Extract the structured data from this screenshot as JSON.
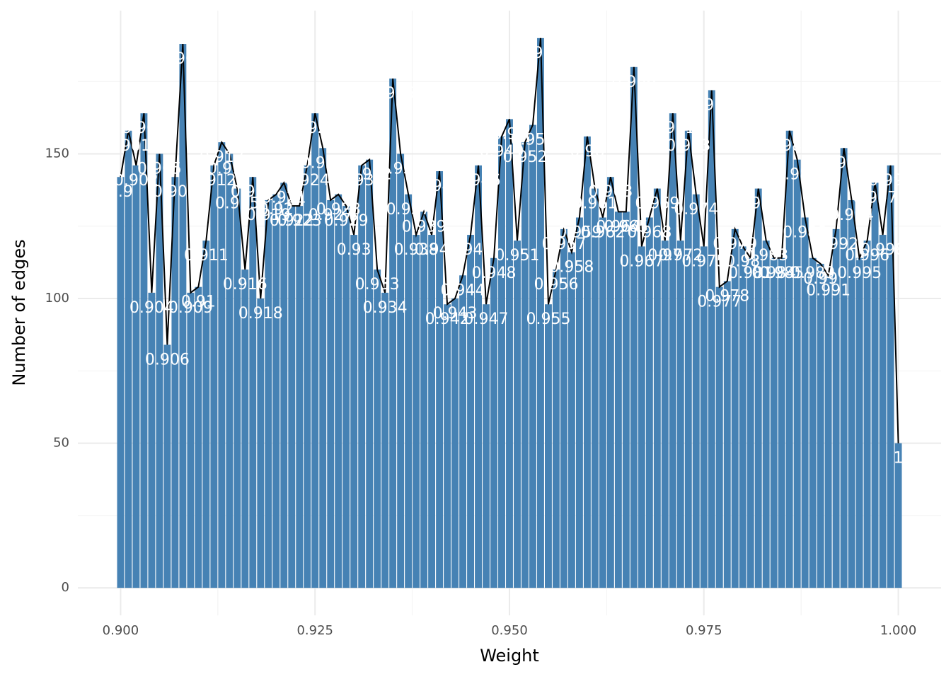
{
  "chart_data": {
    "type": "bar",
    "x_label": "Weight",
    "y_label": "Number of edges",
    "x": [
      0.9,
      0.901,
      0.902,
      0.903,
      0.904,
      0.905,
      0.906,
      0.907,
      0.908,
      0.909,
      0.91,
      0.911,
      0.912,
      0.913,
      0.914,
      0.915,
      0.916,
      0.917,
      0.918,
      0.919,
      0.92,
      0.921,
      0.922,
      0.923,
      0.924,
      0.925,
      0.926,
      0.927,
      0.928,
      0.929,
      0.93,
      0.931,
      0.932,
      0.933,
      0.934,
      0.935,
      0.936,
      0.937,
      0.938,
      0.939,
      0.94,
      0.941,
      0.942,
      0.943,
      0.944,
      0.945,
      0.946,
      0.947,
      0.948,
      0.949,
      0.95,
      0.951,
      0.952,
      0.953,
      0.954,
      0.955,
      0.956,
      0.957,
      0.958,
      0.959,
      0.96,
      0.961,
      0.962,
      0.963,
      0.964,
      0.965,
      0.966,
      0.967,
      0.968,
      0.969,
      0.97,
      0.971,
      0.972,
      0.973,
      0.974,
      0.975,
      0.976,
      0.977,
      0.978,
      0.979,
      0.98,
      0.981,
      0.982,
      0.983,
      0.984,
      0.985,
      0.986,
      0.987,
      0.988,
      0.989,
      0.99,
      0.991,
      0.992,
      0.993,
      0.994,
      0.995,
      0.996,
      0.997,
      0.998,
      0.999,
      1
    ],
    "values": [
      142,
      158,
      146,
      164,
      102,
      150,
      84,
      142,
      188,
      102,
      104,
      120,
      146,
      154,
      150,
      138,
      110,
      142,
      100,
      134,
      136,
      140,
      132,
      132,
      146,
      164,
      152,
      134,
      136,
      132,
      122,
      146,
      148,
      110,
      102,
      176,
      150,
      136,
      122,
      130,
      122,
      144,
      98,
      100,
      108,
      122,
      146,
      98,
      114,
      156,
      162,
      120,
      154,
      160,
      190,
      98,
      110,
      124,
      116,
      128,
      156,
      138,
      128,
      142,
      130,
      130,
      180,
      118,
      128,
      138,
      120,
      164,
      120,
      158,
      136,
      118,
      172,
      104,
      106,
      124,
      118,
      114,
      138,
      120,
      114,
      114,
      158,
      148,
      128,
      114,
      112,
      108,
      124,
      152,
      134,
      114,
      120,
      140,
      122,
      146,
      50
    ],
    "color": "#4682b4",
    "line_color": "#000000",
    "xlim": [
      0.8945,
      1.0055
    ],
    "ylim": [
      -9.5,
      199.5
    ],
    "xticks": [
      {
        "value": 0.9,
        "label": "0.900"
      },
      {
        "value": 0.925,
        "label": "0.925"
      },
      {
        "value": 0.95,
        "label": "0.950"
      },
      {
        "value": 0.975,
        "label": "0.975"
      },
      {
        "value": 1,
        "label": "1.000"
      }
    ],
    "yticks": [
      0,
      50,
      100,
      150
    ],
    "xminor": [
      0.9125,
      0.9375,
      0.9625,
      0.9875
    ],
    "yminor": [
      25,
      75,
      125,
      175
    ],
    "grid": true
  }
}
